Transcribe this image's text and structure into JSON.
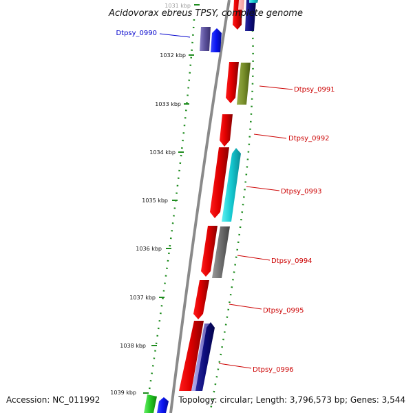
{
  "title": "Acidovorax ebreus TPSY, complete genome",
  "footer": {
    "accession": "Accession: NC_011992",
    "topology": "Topology: circular; Length: 3,796,573 bp; Genes: 3,544"
  },
  "colors": {
    "backbone": "#8a8a8a",
    "ticks": "#1e8c1e",
    "highlight_label": "#0000cc",
    "gene_label": "#cc0000"
  },
  "ticks": [
    "1031 kbp",
    "1032 kbp",
    "1033 kbp",
    "1034 kbp",
    "1035 kbp",
    "1036 kbp",
    "1037 kbp",
    "1038 kbp",
    "1039 kbp"
  ],
  "gene_labels": [
    {
      "id": "dtpsy-0990",
      "text": "Dtpsy_0990",
      "color": "#0000cc"
    },
    {
      "id": "dtpsy-0991",
      "text": "Dtpsy_0991",
      "color": "#cc0000"
    },
    {
      "id": "dtpsy-0992",
      "text": "Dtpsy_0992",
      "color": "#cc0000"
    },
    {
      "id": "dtpsy-0993",
      "text": "Dtpsy_0993",
      "color": "#cc0000"
    },
    {
      "id": "dtpsy-0994",
      "text": "Dtpsy_0994",
      "color": "#cc0000"
    },
    {
      "id": "dtpsy-0995",
      "text": "Dtpsy_0995",
      "color": "#cc0000"
    },
    {
      "id": "dtpsy-0996",
      "text": "Dtpsy_0996",
      "color": "#cc0000"
    }
  ]
}
